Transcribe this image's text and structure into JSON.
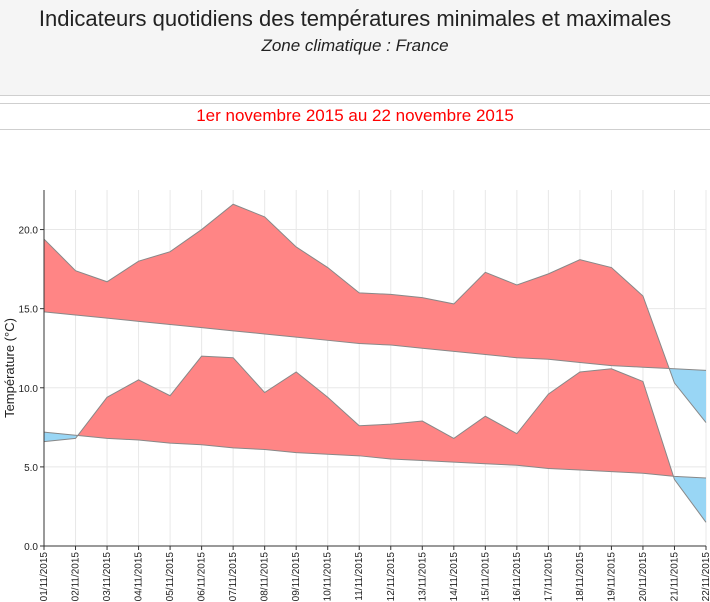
{
  "header": {
    "title": "Indicateurs quotidiens des températures minimales et maximales",
    "subtitle": "Zone climatique : France",
    "period": "1er novembre 2015 au 22 novembre 2015"
  },
  "chart_data": {
    "type": "area",
    "ylabel": "Température (°C)",
    "ylim": [
      0,
      22.5
    ],
    "yticks": [
      0,
      5,
      10,
      15,
      20
    ],
    "ytick_labels": [
      "0.0",
      "5.0",
      "10.0",
      "15.0",
      "20.0"
    ],
    "categories": [
      "01/11/2015",
      "02/11/2015",
      "03/11/2015",
      "04/11/2015",
      "05/11/2015",
      "06/11/2015",
      "07/11/2015",
      "08/11/2015",
      "09/11/2015",
      "10/11/2015",
      "11/11/2015",
      "12/11/2015",
      "13/11/2015",
      "14/11/2015",
      "15/11/2015",
      "16/11/2015",
      "17/11/2015",
      "18/11/2015",
      "19/11/2015",
      "20/11/2015",
      "21/11/2015",
      "22/11/2015"
    ],
    "series": [
      {
        "role": "tmax-observed",
        "values": [
          19.4,
          17.4,
          16.7,
          18.0,
          18.6,
          20.0,
          21.6,
          20.8,
          18.9,
          17.6,
          16.0,
          15.9,
          15.7,
          15.3,
          17.3,
          16.5,
          17.2,
          18.1,
          17.6,
          15.8,
          10.3,
          7.8
        ]
      },
      {
        "role": "tmax-normal",
        "values": [
          14.8,
          14.6,
          14.4,
          14.2,
          14.0,
          13.8,
          13.6,
          13.4,
          13.2,
          13.0,
          12.8,
          12.7,
          12.5,
          12.3,
          12.1,
          11.9,
          11.8,
          11.6,
          11.4,
          11.3,
          11.2,
          11.1
        ]
      },
      {
        "role": "tmin-observed",
        "values": [
          6.6,
          6.8,
          9.4,
          10.5,
          9.5,
          12.0,
          11.9,
          9.7,
          11.0,
          9.4,
          7.6,
          7.7,
          7.9,
          6.8,
          8.2,
          7.1,
          9.6,
          11.0,
          11.2,
          10.4,
          4.2,
          1.5
        ]
      },
      {
        "role": "tmin-normal",
        "values": [
          7.2,
          7.0,
          6.8,
          6.7,
          6.5,
          6.4,
          6.2,
          6.1,
          5.9,
          5.8,
          5.7,
          5.5,
          5.4,
          5.3,
          5.2,
          5.1,
          4.9,
          4.8,
          4.7,
          4.6,
          4.4,
          4.3
        ]
      }
    ],
    "colors": {
      "above": "#ff8585",
      "below": "#99d6f5",
      "curve": "#888888",
      "grid": "#e8e8e8",
      "axis": "#333333"
    },
    "grid": true
  }
}
